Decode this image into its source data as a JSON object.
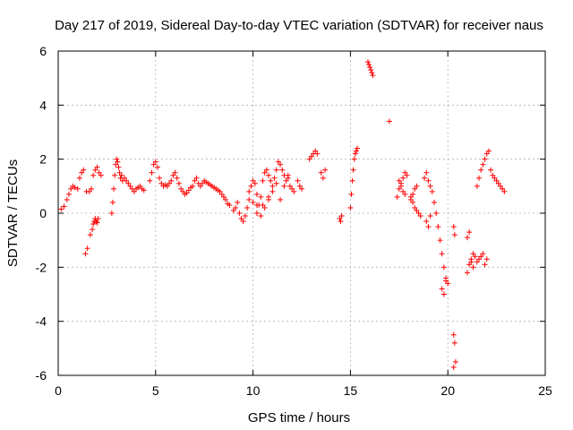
{
  "chart_data": {
    "type": "scatter",
    "title": "Day 217 of 2019, Sidereal Day-to-day VTEC variation (SDTVAR) for receiver naus",
    "xlabel": "GPS time / hours",
    "ylabel": "SDTVAR / TECUs",
    "xlim": [
      0,
      25
    ],
    "ylim": [
      -6,
      6
    ],
    "xticks": [
      0,
      5,
      10,
      15,
      20,
      25
    ],
    "yticks": [
      -6,
      -4,
      -2,
      0,
      2,
      4,
      6
    ],
    "xtick_labels": [
      "0",
      "5",
      "10",
      "15",
      "20",
      "25"
    ],
    "ytick_labels": [
      "-6",
      "-4",
      "-2",
      "0",
      "2",
      "4",
      "6"
    ],
    "grid": true,
    "marker": "plus",
    "color": "#ff0000",
    "series": [
      {
        "name": "naus",
        "x": [
          0.15,
          0.3,
          0.45,
          0.55,
          0.65,
          0.75,
          0.85,
          1.0,
          1.1,
          1.2,
          1.3,
          1.4,
          1.5,
          1.45,
          1.6,
          1.7,
          1.65,
          1.75,
          1.8,
          1.85,
          1.9,
          1.95,
          2.0,
          2.05,
          1.8,
          1.9,
          2.0,
          2.1,
          2.2,
          2.75,
          2.8,
          2.85,
          2.9,
          2.95,
          3.0,
          3.05,
          3.1,
          3.15,
          3.2,
          3.25,
          3.3,
          3.4,
          3.5,
          3.6,
          3.7,
          3.8,
          3.9,
          4.0,
          4.1,
          4.2,
          4.3,
          4.4,
          4.7,
          4.8,
          4.9,
          5.0,
          5.1,
          5.2,
          5.3,
          5.4,
          5.5,
          5.6,
          5.7,
          5.8,
          5.9,
          6.0,
          6.1,
          6.2,
          6.3,
          6.4,
          6.5,
          6.6,
          6.7,
          6.8,
          6.9,
          7.0,
          7.1,
          7.2,
          7.3,
          7.4,
          7.5,
          7.6,
          7.7,
          7.8,
          7.9,
          8.0,
          8.1,
          8.2,
          8.3,
          8.4,
          8.5,
          8.6,
          8.7,
          8.8,
          9.0,
          9.1,
          9.2,
          9.3,
          9.4,
          9.5,
          9.6,
          9.7,
          9.8,
          9.9,
          10.0,
          10.1,
          10.2,
          10.3,
          10.4,
          10.5,
          10.6,
          10.7,
          10.8,
          10.9,
          11.0,
          11.1,
          11.2,
          11.3,
          11.4,
          11.5,
          11.6,
          11.7,
          11.8,
          11.9,
          12.0,
          12.1,
          12.3,
          12.4,
          12.5,
          10.2,
          10.4,
          10.6,
          10.8,
          11.0,
          11.2,
          11.4,
          11.6,
          11.8,
          9.8,
          10.0,
          10.2,
          10.5,
          10.8,
          12.9,
          13.0,
          13.1,
          13.2,
          13.3,
          13.5,
          13.6,
          13.7,
          14.45,
          14.5,
          14.55,
          15.0,
          15.05,
          15.1,
          15.15,
          15.2,
          15.25,
          15.3,
          15.35,
          15.9,
          15.95,
          16.0,
          16.05,
          16.1,
          16.15,
          17.0,
          17.4,
          17.5,
          17.6,
          17.7,
          17.8,
          17.9,
          17.5,
          17.6,
          17.7,
          17.8,
          18.1,
          18.2,
          18.3,
          18.4,
          18.5,
          18.6,
          18.1,
          18.2,
          18.3,
          18.4,
          18.8,
          18.9,
          19.0,
          19.1,
          19.2,
          18.9,
          19.0,
          19.1,
          19.3,
          19.4,
          19.5,
          19.6,
          19.7,
          19.8,
          19.9,
          20.0,
          19.7,
          19.8,
          19.9,
          20.3,
          20.35,
          20.3,
          20.35,
          20.4,
          20.3,
          21.0,
          21.1,
          21.2,
          21.3,
          21.0,
          21.1,
          21.2,
          21.3,
          21.4,
          21.5,
          21.6,
          21.7,
          21.8,
          21.9,
          22.0,
          21.5,
          21.6,
          21.7,
          21.8,
          21.9,
          22.0,
          22.1,
          22.2,
          22.3,
          22.4,
          22.5,
          22.6,
          22.7,
          22.8,
          22.9
        ],
        "y": [
          0.15,
          0.25,
          0.5,
          0.7,
          0.9,
          1.0,
          0.95,
          0.9,
          1.3,
          1.5,
          1.6,
          -1.5,
          -1.3,
          0.8,
          0.8,
          0.9,
          -0.8,
          -0.6,
          -0.4,
          -0.3,
          -0.2,
          -0.3,
          -0.35,
          -0.2,
          1.4,
          1.6,
          1.7,
          1.5,
          1.4,
          0.0,
          0.4,
          0.9,
          1.4,
          1.8,
          2.0,
          1.9,
          1.7,
          1.5,
          1.3,
          1.4,
          1.2,
          1.3,
          1.2,
          1.1,
          1.0,
          0.9,
          0.8,
          0.9,
          0.95,
          1.0,
          0.9,
          0.85,
          1.2,
          1.5,
          1.8,
          1.9,
          1.7,
          1.3,
          1.1,
          1.0,
          1.05,
          1.0,
          1.1,
          1.2,
          1.4,
          1.5,
          1.3,
          1.1,
          0.9,
          0.8,
          0.7,
          0.75,
          0.85,
          0.95,
          1.0,
          1.2,
          1.3,
          1.1,
          1.0,
          1.1,
          1.2,
          1.15,
          1.1,
          1.05,
          1.0,
          0.95,
          0.9,
          0.85,
          0.8,
          0.7,
          0.6,
          0.5,
          0.35,
          0.3,
          0.1,
          0.2,
          0.4,
          0.0,
          -0.2,
          -0.3,
          -0.1,
          0.2,
          0.5,
          1.0,
          1.2,
          1.1,
          0.7,
          0.3,
          0.6,
          1.2,
          1.5,
          1.6,
          1.4,
          1.2,
          1.0,
          1.3,
          1.6,
          1.9,
          1.8,
          1.6,
          1.4,
          1.2,
          1.4,
          1.0,
          0.9,
          0.8,
          1.2,
          1.0,
          0.9,
          0.3,
          -0.1,
          0.2,
          0.6,
          0.8,
          1.1,
          0.5,
          1.0,
          1.3,
          0.8,
          0.4,
          0.0,
          0.3,
          0.5,
          2.0,
          2.1,
          2.2,
          2.3,
          2.2,
          1.5,
          1.3,
          1.6,
          -0.2,
          -0.3,
          -0.1,
          0.2,
          0.7,
          1.2,
          1.6,
          2.0,
          2.2,
          2.3,
          2.4,
          5.6,
          5.5,
          5.4,
          5.3,
          5.2,
          5.1,
          3.4,
          0.6,
          0.9,
          1.1,
          1.3,
          1.5,
          1.4,
          1.2,
          1.0,
          0.8,
          0.7,
          0.6,
          0.4,
          0.2,
          0.1,
          0.0,
          -0.1,
          0.5,
          0.7,
          0.9,
          1.0,
          1.3,
          1.5,
          1.2,
          1.0,
          0.8,
          -0.3,
          -0.5,
          -0.1,
          0.4,
          0.0,
          -0.5,
          -1.0,
          -1.5,
          -2.0,
          -2.4,
          -2.6,
          -2.8,
          -3.0,
          -2.5,
          -0.5,
          -0.8,
          -4.5,
          -4.8,
          -5.5,
          -5.7,
          -0.9,
          -0.7,
          -1.8,
          -2.0,
          -2.2,
          -1.9,
          -1.7,
          -1.5,
          -1.6,
          -1.8,
          -1.7,
          -1.6,
          -1.5,
          -1.9,
          -1.7,
          1.0,
          1.3,
          1.6,
          1.8,
          2.0,
          2.2,
          2.3,
          1.6,
          1.4,
          1.3,
          1.2,
          1.1,
          1.0,
          0.9,
          0.8
        ]
      }
    ]
  }
}
